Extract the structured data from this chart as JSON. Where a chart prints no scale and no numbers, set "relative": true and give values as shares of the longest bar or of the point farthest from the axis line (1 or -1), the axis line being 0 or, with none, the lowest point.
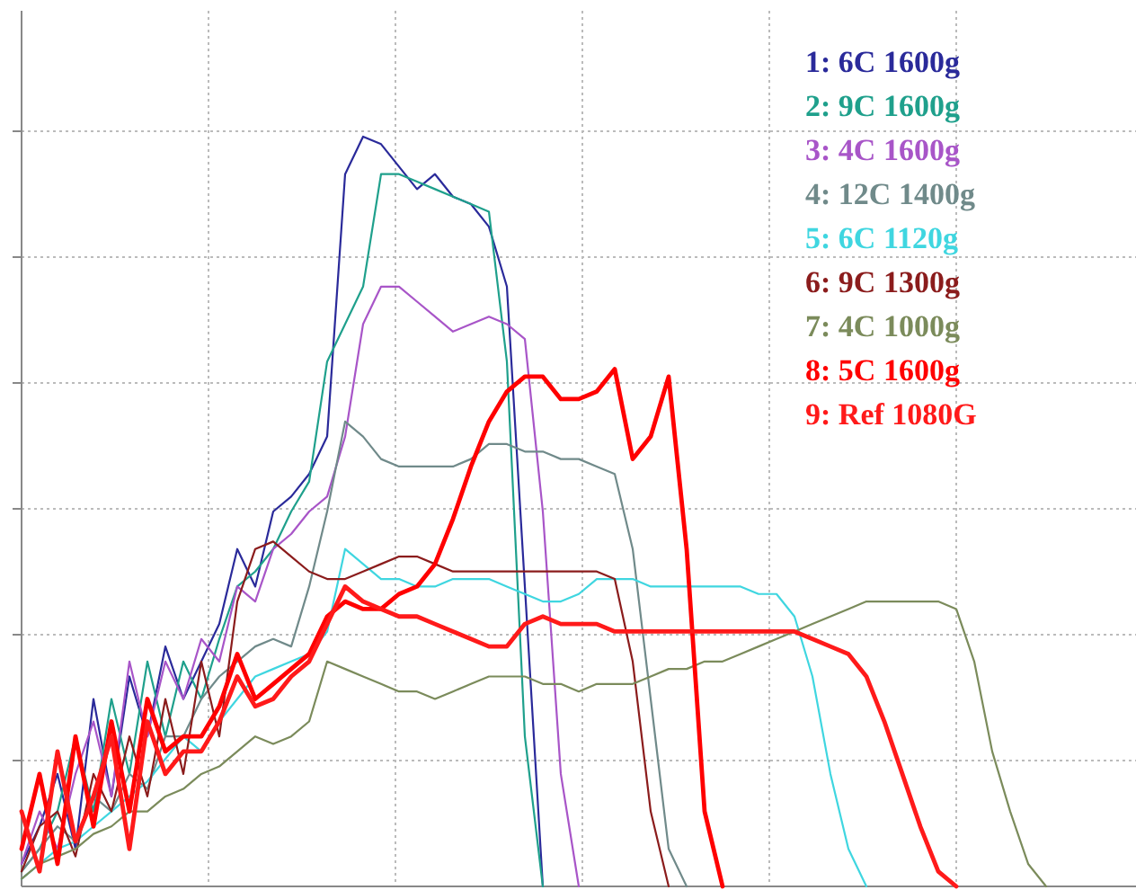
{
  "chart_data": {
    "type": "line",
    "relative": true,
    "grid": true,
    "legend": "top right",
    "marker": "none",
    "line_style": "solid",
    "categories": [
      null,
      null,
      null,
      null,
      null,
      null,
      null,
      null,
      null,
      null,
      null,
      null,
      null,
      null,
      null,
      null,
      null,
      null,
      null,
      null,
      null,
      null,
      null,
      null,
      null,
      null,
      null,
      null,
      null,
      null,
      null,
      null,
      null,
      null,
      null,
      null,
      null,
      null,
      null,
      null,
      null,
      null,
      null,
      null,
      null,
      null,
      null,
      null,
      null,
      null,
      null,
      null,
      null,
      null,
      null,
      null,
      null,
      null,
      null,
      null,
      null,
      null,
      null
    ],
    "series": [
      {
        "name": "1: 6C 1600g",
        "color": "#2a2a9a",
        "values": [
          0.03,
          0.08,
          0.15,
          0.05,
          0.25,
          0.12,
          0.28,
          0.2,
          0.32,
          0.25,
          0.3,
          0.35,
          0.45,
          0.4,
          0.5,
          0.52,
          0.55,
          0.6,
          0.95,
          1,
          0.99,
          0.96,
          0.93,
          0.95,
          0.92,
          0.91,
          0.88,
          0.8,
          0.4,
          0,
          null,
          null,
          null,
          null,
          null,
          null,
          null,
          null,
          null,
          null,
          null,
          null,
          null,
          null,
          null,
          null,
          null,
          null,
          null,
          null,
          null,
          null,
          null,
          null,
          null,
          null,
          null,
          null,
          null,
          null,
          null,
          null,
          null
        ]
      },
      {
        "name": "2: 9C 1600g",
        "color": "#1fa08c",
        "values": [
          0.02,
          0.05,
          0.1,
          0.2,
          0.1,
          0.25,
          0.15,
          0.3,
          0.2,
          0.3,
          0.25,
          0.33,
          0.4,
          0.42,
          0.45,
          0.5,
          0.54,
          0.7,
          0.75,
          0.8,
          0.95,
          0.95,
          0.94,
          0.93,
          0.92,
          0.91,
          0.9,
          0.7,
          0.2,
          0,
          null,
          null,
          null,
          null,
          null,
          null,
          null,
          null,
          null,
          null,
          null,
          null,
          null,
          null,
          null,
          null,
          null,
          null,
          null,
          null,
          null,
          null,
          null,
          null,
          null,
          null,
          null,
          null,
          null,
          null,
          null,
          null,
          null
        ]
      },
      {
        "name": "3: 4C 1600g",
        "color": "#a855c8",
        "values": [
          0.03,
          0.1,
          0.05,
          0.15,
          0.22,
          0.12,
          0.3,
          0.2,
          0.3,
          0.25,
          0.33,
          0.3,
          0.4,
          0.38,
          0.45,
          0.47,
          0.5,
          0.52,
          0.6,
          0.75,
          0.8,
          0.8,
          0.78,
          0.76,
          0.74,
          0.75,
          0.76,
          0.75,
          0.73,
          0.5,
          0.15,
          0,
          null,
          null,
          null,
          null,
          null,
          null,
          null,
          null,
          null,
          null,
          null,
          null,
          null,
          null,
          null,
          null,
          null,
          null,
          null,
          null,
          null,
          null,
          null,
          null,
          null,
          null,
          null,
          null,
          null,
          null,
          null
        ]
      },
      {
        "name": "4: 12C 1400g",
        "color": "#708a8a",
        "values": [
          0.02,
          0.05,
          0.08,
          0.06,
          0.12,
          0.1,
          0.15,
          0.13,
          0.2,
          0.2,
          0.25,
          0.28,
          0.3,
          0.32,
          0.33,
          0.32,
          0.4,
          0.5,
          0.62,
          0.6,
          0.57,
          0.56,
          0.56,
          0.56,
          0.56,
          0.57,
          0.59,
          0.59,
          0.58,
          0.58,
          0.57,
          0.57,
          0.56,
          0.55,
          0.45,
          0.25,
          0.05,
          0,
          null,
          null,
          null,
          null,
          null,
          null,
          null,
          null,
          null,
          null,
          null,
          null,
          null,
          null,
          null,
          null,
          null,
          null,
          null,
          null,
          null,
          null,
          null,
          null,
          null
        ]
      },
      {
        "name": "5: 6C 1120g",
        "color": "#3fd6e0",
        "values": [
          0.01,
          0.03,
          0.05,
          0.06,
          0.08,
          0.1,
          0.12,
          0.14,
          0.17,
          0.2,
          0.18,
          0.22,
          0.25,
          0.28,
          0.29,
          0.3,
          0.31,
          0.34,
          0.45,
          0.43,
          0.41,
          0.41,
          0.4,
          0.4,
          0.41,
          0.41,
          0.41,
          0.4,
          0.39,
          0.38,
          0.38,
          0.39,
          0.41,
          0.41,
          0.41,
          0.4,
          0.4,
          0.4,
          0.4,
          0.4,
          0.4,
          0.39,
          0.39,
          0.36,
          0.28,
          0.15,
          0.05,
          0,
          null,
          null,
          null,
          null,
          null,
          null,
          null,
          null,
          null,
          null,
          null,
          null,
          null,
          null,
          null
        ]
      },
      {
        "name": "6: 9C 1300g",
        "color": "#8b1c1c",
        "values": [
          0.02,
          0.08,
          0.1,
          0.04,
          0.15,
          0.1,
          0.2,
          0.12,
          0.25,
          0.15,
          0.3,
          0.2,
          0.38,
          0.45,
          0.46,
          0.44,
          0.42,
          0.41,
          0.41,
          0.42,
          0.43,
          0.44,
          0.44,
          0.43,
          0.42,
          0.42,
          0.42,
          0.42,
          0.42,
          0.42,
          0.42,
          0.42,
          0.42,
          0.41,
          0.3,
          0.1,
          0,
          null,
          null,
          null,
          null,
          null,
          null,
          null,
          null,
          null,
          null,
          null,
          null,
          null,
          null,
          null,
          null,
          null,
          null,
          null,
          null,
          null,
          null,
          null,
          null,
          null,
          null
        ]
      },
      {
        "name": "7: 4C 1000g",
        "color": "#7b8b5b",
        "values": [
          0.01,
          0.03,
          0.04,
          0.05,
          0.07,
          0.08,
          0.1,
          0.1,
          0.12,
          0.13,
          0.15,
          0.16,
          0.18,
          0.2,
          0.19,
          0.2,
          0.22,
          0.3,
          0.29,
          0.28,
          0.27,
          0.26,
          0.26,
          0.25,
          0.26,
          0.27,
          0.28,
          0.28,
          0.28,
          0.27,
          0.27,
          0.26,
          0.27,
          0.27,
          0.27,
          0.28,
          0.29,
          0.29,
          0.3,
          0.3,
          0.31,
          0.32,
          0.33,
          0.34,
          0.35,
          0.36,
          0.37,
          0.38,
          0.38,
          0.38,
          0.38,
          0.38,
          0.37,
          0.3,
          0.18,
          0.1,
          0.03,
          0,
          null,
          null,
          null,
          null,
          null
        ]
      },
      {
        "name": "8: 5C 1600g",
        "color": "#ff0000",
        "values": [
          0.05,
          0.15,
          0.03,
          0.2,
          0.08,
          0.22,
          0.1,
          0.25,
          0.18,
          0.2,
          0.2,
          0.24,
          0.31,
          0.25,
          0.27,
          0.29,
          0.31,
          0.36,
          0.38,
          0.37,
          0.37,
          0.39,
          0.4,
          0.43,
          0.49,
          0.56,
          0.62,
          0.66,
          0.68,
          0.68,
          0.65,
          0.65,
          0.66,
          0.69,
          0.57,
          0.6,
          0.68,
          0.45,
          0.1,
          0,
          null,
          null,
          null,
          null,
          null,
          null,
          null,
          null,
          null,
          null,
          null,
          null,
          null,
          null,
          null,
          null,
          null,
          null,
          null,
          null,
          null,
          null,
          null
        ]
      },
      {
        "name": "9: Ref 1080G",
        "color": "#ff1a1a",
        "values": [
          0.1,
          0.02,
          0.18,
          0.06,
          0.12,
          0.2,
          0.05,
          0.22,
          0.15,
          0.18,
          0.18,
          0.22,
          0.28,
          0.24,
          0.25,
          0.28,
          0.3,
          0.35,
          0.4,
          0.38,
          0.37,
          0.36,
          0.36,
          0.35,
          0.34,
          0.33,
          0.32,
          0.32,
          0.35,
          0.36,
          0.35,
          0.35,
          0.35,
          0.34,
          0.34,
          0.34,
          0.34,
          0.34,
          0.34,
          0.34,
          0.34,
          0.34,
          0.34,
          0.34,
          0.33,
          0.32,
          0.31,
          0.28,
          0.22,
          0.15,
          0.08,
          0.02,
          0,
          null,
          null,
          null,
          null,
          null,
          null,
          null,
          null,
          null,
          null
        ]
      }
    ]
  }
}
